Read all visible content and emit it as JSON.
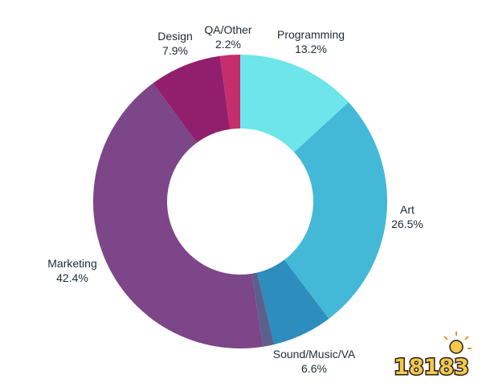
{
  "chart_data": {
    "type": "donut",
    "title": "",
    "start_angle_deg": 0,
    "direction": "clockwise",
    "slices": [
      {
        "name": "Programming",
        "value_label": "13.2%",
        "value": 13.2,
        "color": "#6de5ea"
      },
      {
        "name": "Art",
        "value_label": "26.5%",
        "value": 26.5,
        "color": "#43b8d7"
      },
      {
        "name": "Sound/Music/VA",
        "value_label": "6.6%",
        "value": 6.6,
        "color": "#2d8dbd"
      },
      {
        "name": "",
        "value_label": "",
        "value": 1.2,
        "color": "#5a5f8c"
      },
      {
        "name": "Marketing",
        "value_label": "42.4%",
        "value": 42.4,
        "color": "#7c4688"
      },
      {
        "name": "Design",
        "value_label": "7.9%",
        "value": 7.9,
        "color": "#921f6e"
      },
      {
        "name": "QA/Other",
        "value_label": "2.2%",
        "value": 2.2,
        "color": "#c62d6b"
      }
    ]
  },
  "watermark": {
    "text": "18183",
    "color": "#f2c94c",
    "outline": "#2b1d12"
  }
}
